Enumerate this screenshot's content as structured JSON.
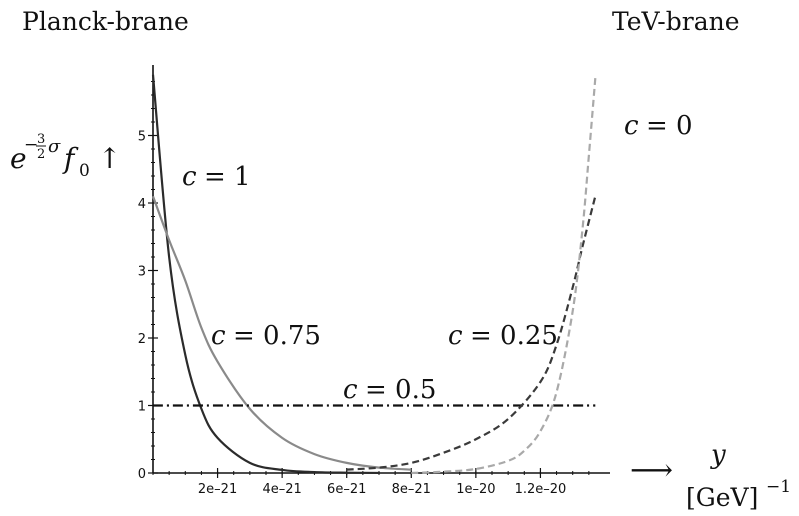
{
  "chart_data": {
    "type": "line",
    "top_labels": {
      "left": "Planck-brane",
      "right": "TeV-brane"
    },
    "ylabel": {
      "base": "e",
      "exp_prefix": "−",
      "exp_num": "3",
      "exp_den": "2",
      "exp_suffix": "σ",
      "func": "f",
      "sub": "0",
      "arrow": "↑"
    },
    "xlabel": {
      "arrow": "⟶",
      "var": "y",
      "unit_main": "[GeV]",
      "unit_exp": "−1"
    },
    "xlim": [
      0,
      1.4e-20
    ],
    "ylim": [
      0,
      6
    ],
    "xticks": [
      {
        "value": 2e-21,
        "label": "2e–21"
      },
      {
        "value": 4e-21,
        "label": "4e–21"
      },
      {
        "value": 6e-21,
        "label": "6e–21"
      },
      {
        "value": 8e-21,
        "label": "8e–21"
      },
      {
        "value": 1e-20,
        "label": "1e–20"
      },
      {
        "value": 1.2e-20,
        "label": "1.2e–20"
      }
    ],
    "yticks": [
      {
        "value": 0,
        "label": "0"
      },
      {
        "value": 1,
        "label": "1"
      },
      {
        "value": 2,
        "label": "2"
      },
      {
        "value": 3,
        "label": "3"
      },
      {
        "value": 4,
        "label": "4"
      },
      {
        "value": 5,
        "label": "5"
      }
    ],
    "grid": false,
    "series": [
      {
        "name": "c = 1",
        "color": "#2b2b2b",
        "dash": "solid",
        "x": [
          0,
          5e-22,
          1e-21,
          1.5e-21,
          2e-21,
          3e-21,
          4e-21,
          5e-21,
          6e-21,
          7e-21
        ],
        "y": [
          5.9,
          3.2,
          1.75,
          0.95,
          0.52,
          0.15,
          0.045,
          0.013,
          0.004,
          0.001
        ]
      },
      {
        "name": "c = 0.75",
        "color": "#8a8a8a",
        "dash": "solid",
        "x": [
          0,
          5e-22,
          1e-21,
          1.5e-21,
          2e-21,
          3e-21,
          4e-21,
          5e-21,
          6e-21,
          7e-21,
          8e-21
        ],
        "y": [
          4.1,
          3.45,
          2.85,
          2.15,
          1.65,
          0.95,
          0.52,
          0.28,
          0.15,
          0.08,
          0.05
        ]
      },
      {
        "name": "c = 0.5",
        "color": "#111111",
        "dash": "dashdot",
        "x": [
          0,
          1.37e-20
        ],
        "y": [
          1,
          1
        ]
      },
      {
        "name": "c = 0.25",
        "color": "#3a3a3a",
        "dash": "dashed",
        "x": [
          6e-21,
          7e-21,
          8e-21,
          9e-21,
          1e-20,
          1.1e-20,
          1.2e-20,
          1.25e-20,
          1.3e-20,
          1.33e-20,
          1.37e-20
        ],
        "y": [
          0.05,
          0.08,
          0.15,
          0.3,
          0.5,
          0.8,
          1.35,
          1.9,
          2.75,
          3.35,
          4.1
        ]
      },
      {
        "name": "c = 0",
        "color": "#a9a9a9",
        "dash": "dashed",
        "x": [
          8e-21,
          9e-21,
          1e-20,
          1.1e-20,
          1.15e-20,
          1.2e-20,
          1.25e-20,
          1.3e-20,
          1.33e-20,
          1.35e-20,
          1.37e-20
        ],
        "y": [
          0.0,
          0.02,
          0.06,
          0.18,
          0.33,
          0.62,
          1.2,
          2.4,
          3.6,
          4.7,
          5.85
        ]
      }
    ]
  }
}
